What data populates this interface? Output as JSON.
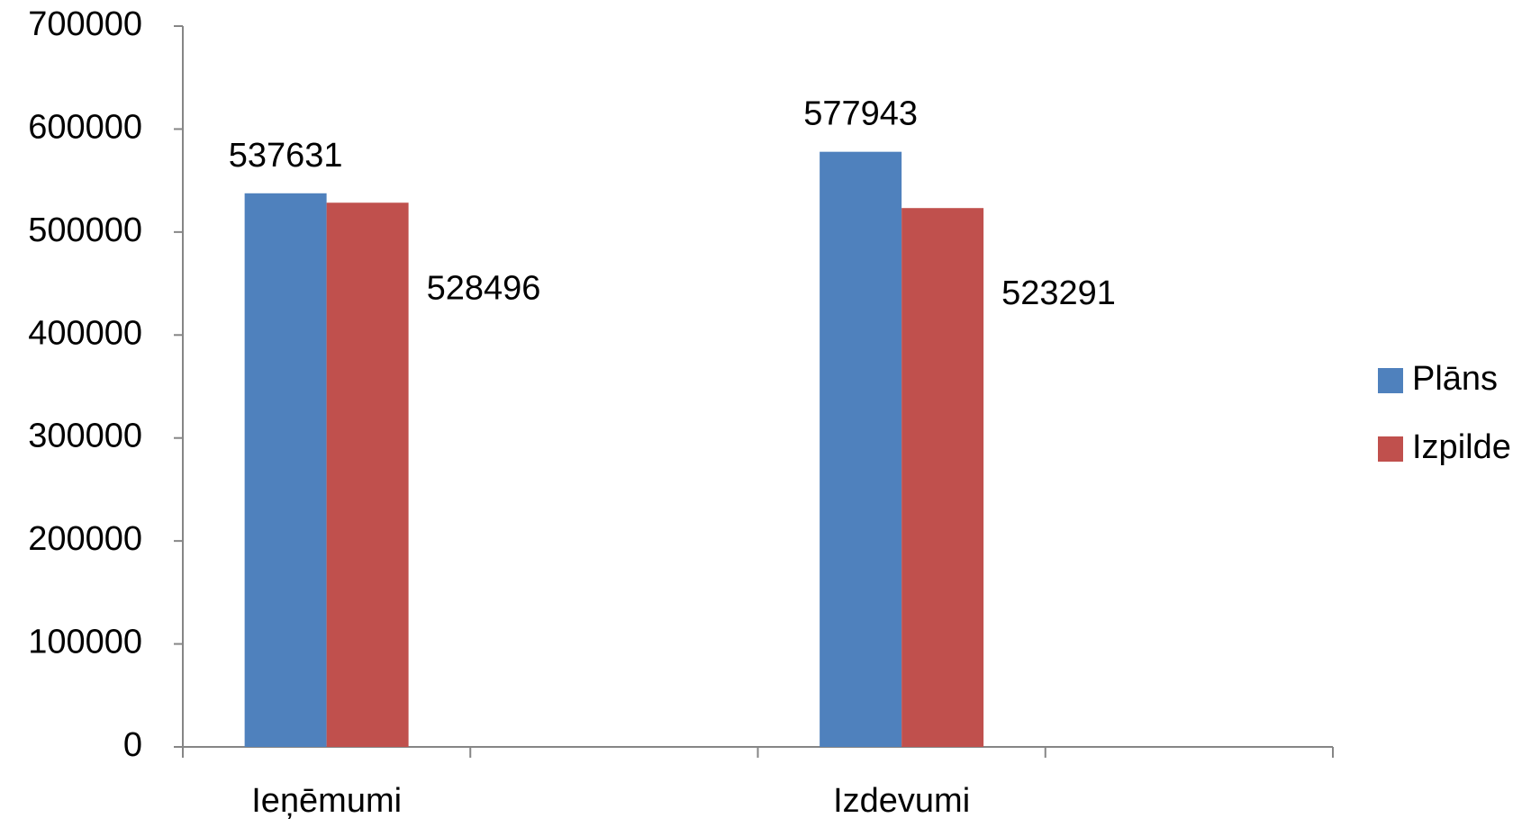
{
  "chart_data": {
    "type": "bar",
    "categories": [
      "Ieņēmumi",
      null,
      "Izdevumi",
      null
    ],
    "series": [
      {
        "name": "Plāns",
        "color": "#4f81bd",
        "values": [
          537631,
          null,
          577943,
          null
        ]
      },
      {
        "name": "Izpilde",
        "color": "#c0504d",
        "values": [
          528496,
          null,
          523291,
          null
        ]
      }
    ],
    "ylim": [
      0,
      700000
    ],
    "yticks": [
      0,
      100000,
      200000,
      300000,
      400000,
      500000,
      600000,
      700000
    ],
    "grid": false,
    "legend": "right"
  }
}
